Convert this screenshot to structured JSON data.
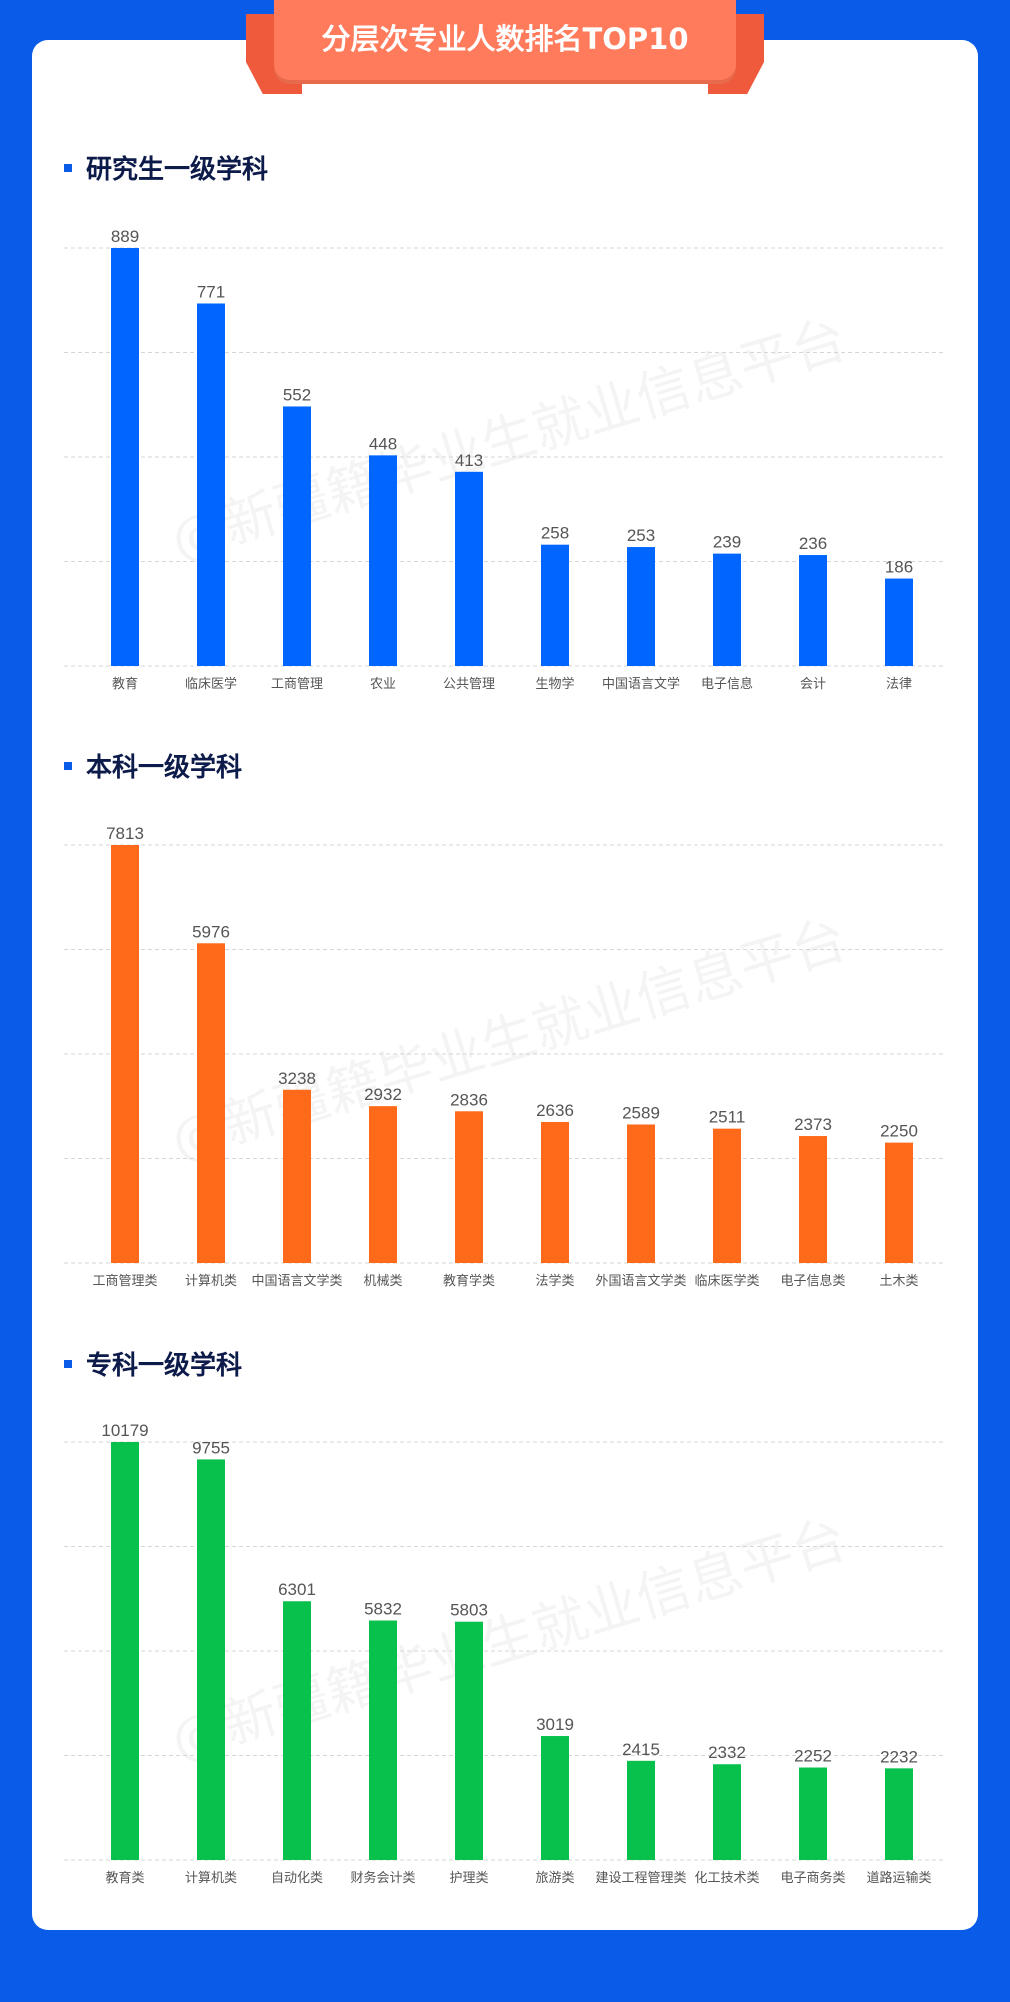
{
  "banner": {
    "title": "分层次专业人数排名TOP10"
  },
  "watermark": "@新疆籍毕业生就业信息平台",
  "colors": {
    "background": "#0a5ce8",
    "banner": "#ff7b5c",
    "graduate": "#0066ff",
    "undergraduate": "#ff6a1a",
    "vocational": "#08c04c"
  },
  "sections": [
    {
      "title": "研究生一级学科"
    },
    {
      "title": "本科一级学科"
    },
    {
      "title": "专科一级学科"
    }
  ],
  "chart_data": [
    {
      "type": "bar",
      "title": "研究生一级学科",
      "categories": [
        "教育",
        "临床医学",
        "工商管理",
        "农业",
        "公共管理",
        "生物学",
        "中国语言文学",
        "电子信息",
        "会计",
        "法律"
      ],
      "values": [
        889,
        771,
        552,
        448,
        413,
        258,
        253,
        239,
        236,
        186
      ],
      "ylim": [
        0,
        889
      ],
      "grid": true,
      "color": "#0066ff"
    },
    {
      "type": "bar",
      "title": "本科一级学科",
      "categories": [
        "工商管理类",
        "计算机类",
        "中国语言文学类",
        "机械类",
        "教育学类",
        "法学类",
        "外国语言文学类",
        "临床医学类",
        "电子信息类",
        "土木类"
      ],
      "values": [
        7813,
        5976,
        3238,
        2932,
        2836,
        2636,
        2589,
        2511,
        2373,
        2250
      ],
      "ylim": [
        0,
        7813
      ],
      "grid": true,
      "color": "#ff6a1a"
    },
    {
      "type": "bar",
      "title": "专科一级学科",
      "categories": [
        "教育类",
        "计算机类",
        "自动化类",
        "财务会计类",
        "护理类",
        "旅游类",
        "建设工程管理类",
        "化工技术类",
        "电子商务类",
        "道路运输类"
      ],
      "values": [
        10179,
        9755,
        6301,
        5832,
        5803,
        3019,
        2415,
        2332,
        2252,
        2232
      ],
      "ylim": [
        0,
        10179
      ],
      "grid": true,
      "color": "#08c04c"
    }
  ]
}
